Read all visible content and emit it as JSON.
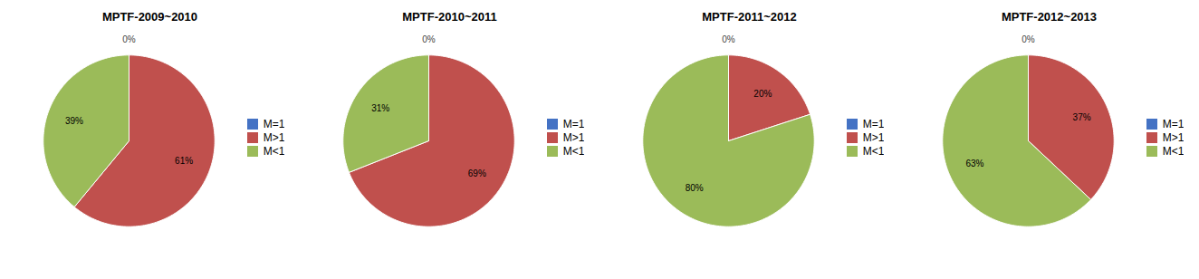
{
  "chart_data": [
    {
      "type": "pie",
      "title": "MPTF-2009~2010",
      "categories": [
        "M=1",
        "M>1",
        "M<1"
      ],
      "values": [
        0.001,
        61,
        39
      ],
      "value_labels": [
        "0%",
        "61%",
        "39%"
      ],
      "colors": [
        "#4472C4",
        "#C0504D",
        "#9BBB59"
      ],
      "data_labels": true,
      "legend": "right"
    },
    {
      "type": "pie",
      "title": "MPTF-2010~2011",
      "categories": [
        "M=1",
        "M>1",
        "M<1"
      ],
      "values": [
        0.001,
        69,
        31
      ],
      "value_labels": [
        "0%",
        "69%",
        "31%"
      ],
      "colors": [
        "#4472C4",
        "#C0504D",
        "#9BBB59"
      ],
      "data_labels": true,
      "legend": "right"
    },
    {
      "type": "pie",
      "title": "MPTF-2011~2012",
      "categories": [
        "M=1",
        "M>1",
        "M<1"
      ],
      "values": [
        0.001,
        20,
        80
      ],
      "value_labels": [
        "0%",
        "20%",
        "80%"
      ],
      "colors": [
        "#4472C4",
        "#C0504D",
        "#9BBB59"
      ],
      "data_labels": true,
      "legend": "right"
    },
    {
      "type": "pie",
      "title": "MPTF-2012~2013",
      "categories": [
        "M=1",
        "M>1",
        "M<1"
      ],
      "values": [
        0.001,
        37,
        63
      ],
      "value_labels": [
        "0%",
        "37%",
        "63%"
      ],
      "colors": [
        "#4472C4",
        "#C0504D",
        "#9BBB59"
      ],
      "data_labels": true,
      "legend": "right"
    }
  ]
}
